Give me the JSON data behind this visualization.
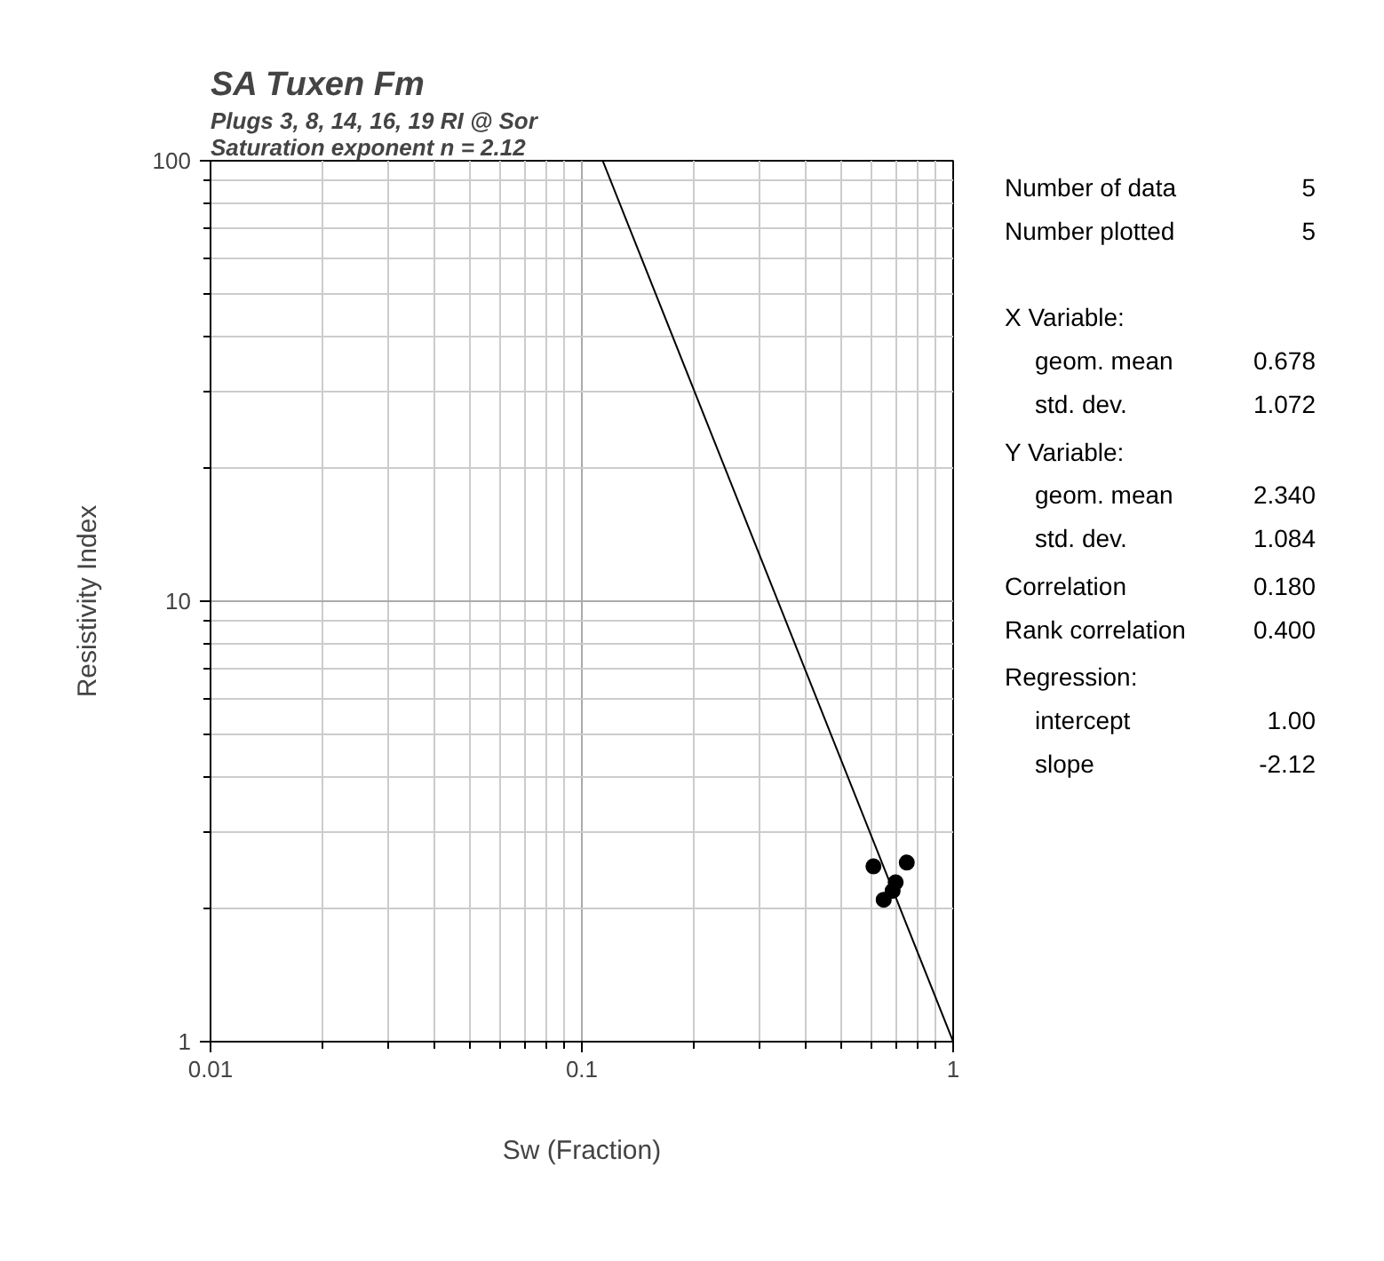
{
  "chart_data": {
    "type": "scatter",
    "title": "SA Tuxen Fm",
    "subtitle": "Plugs 3, 8, 14, 16, 19 RI @ Sor\nSaturation exponent n = 2.12",
    "xlabel": "Sw (Fraction)",
    "ylabel": "Resistivity Index",
    "log": "xy",
    "grid": true,
    "marker": "circle",
    "xlim": [
      0.01,
      1
    ],
    "ylim": [
      1,
      100
    ],
    "xticks": [
      0.01,
      0.1,
      1
    ],
    "yticks": [
      1,
      10,
      100
    ],
    "series": [
      {
        "type": "scatter",
        "color": "#000000",
        "x": [
          0.61,
          0.75,
          0.7,
          0.687,
          0.65
        ],
        "values": [
          2.5,
          2.55,
          2.3,
          2.2,
          2.1
        ]
      },
      {
        "type": "line",
        "marker": "none",
        "color": "#000000",
        "line_style": "solid",
        "x": [
          0.1138,
          1
        ],
        "values": [
          100,
          1
        ]
      }
    ],
    "annotations": [
      "Number of data",
      "5",
      "Number plotted",
      "5",
      "X Variable:",
      "geom. mean",
      "0.678",
      "std. dev.",
      "1.072",
      "Y Variable:",
      "geom. mean",
      "2.340",
      "std. dev.",
      "1.084",
      "Correlation",
      "0.180",
      "Rank correlation",
      "0.400",
      "Regression:",
      "intercept",
      "1.00",
      "slope",
      "-2.12"
    ]
  }
}
